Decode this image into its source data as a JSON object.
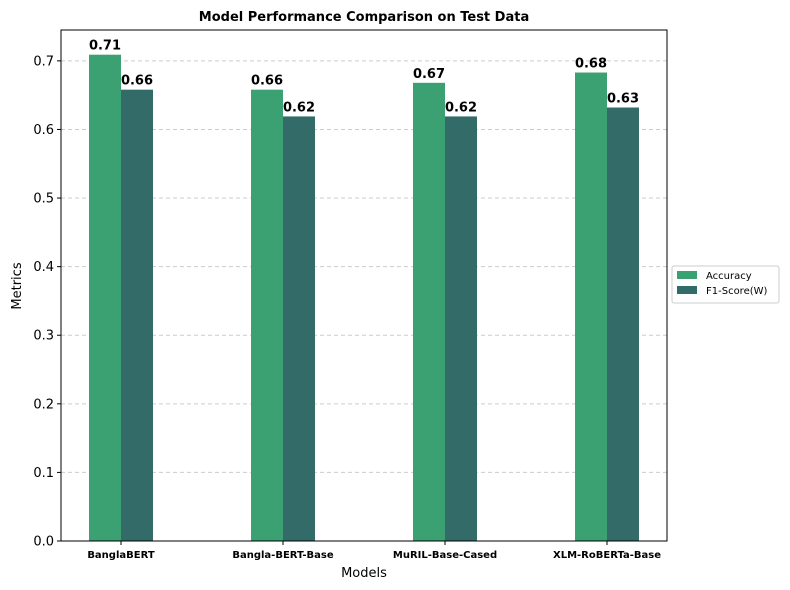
{
  "chart_data": {
    "type": "bar",
    "title": "Model Performance Comparison on Test Data",
    "xlabel": "Models",
    "ylabel": "Metrics",
    "categories": [
      "BanglaBERT",
      "Bangla-BERT-Base",
      "MuRIL-Base-Cased",
      "XLM-RoBERTa-Base"
    ],
    "series": [
      {
        "name": "Accuracy",
        "color": "#3ba172",
        "values": [
          0.709,
          0.658,
          0.668,
          0.683
        ],
        "labels": [
          "0.71",
          "0.66",
          "0.67",
          "0.68"
        ]
      },
      {
        "name": "F1-Score(W)",
        "color": "#336b69",
        "values": [
          0.658,
          0.619,
          0.619,
          0.632
        ],
        "labels": [
          "0.66",
          "0.62",
          "0.62",
          "0.63"
        ]
      }
    ],
    "ylim": [
      0,
      0.745
    ],
    "yticks": [
      "0.0",
      "0.1",
      "0.2",
      "0.3",
      "0.4",
      "0.5",
      "0.6",
      "0.7"
    ],
    "grid": "y-dashed",
    "legend": "center-right"
  }
}
